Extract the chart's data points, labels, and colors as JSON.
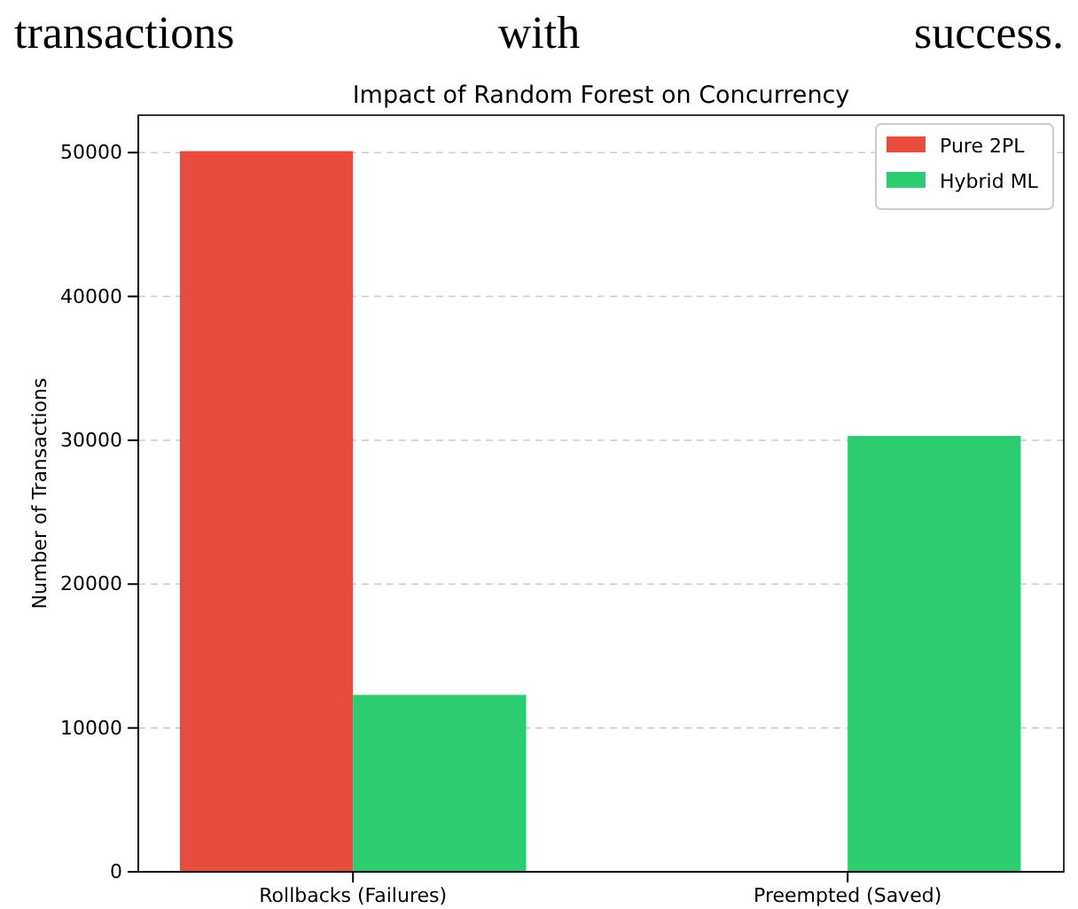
{
  "chart_data": {
    "type": "bar",
    "title": "Impact of Random Forest on Concurrency",
    "ylabel": "Number of Transactions",
    "annotations": [
      "transactions with success."
    ],
    "categories": [
      "Rollbacks (Failures)",
      "Preempted (Saved)"
    ],
    "series": [
      {
        "name": "Pure 2PL",
        "color": "#e74c3c",
        "values": [
          50100,
          0
        ]
      },
      {
        "name": "Hybrid ML",
        "color": "#2ecc71",
        "values": [
          12300,
          30300
        ]
      }
    ],
    "ylim": [
      0,
      52600
    ],
    "yticks": [
      0,
      10000,
      20000,
      30000,
      40000,
      50000
    ],
    "grid": "y",
    "legend": "top right"
  }
}
